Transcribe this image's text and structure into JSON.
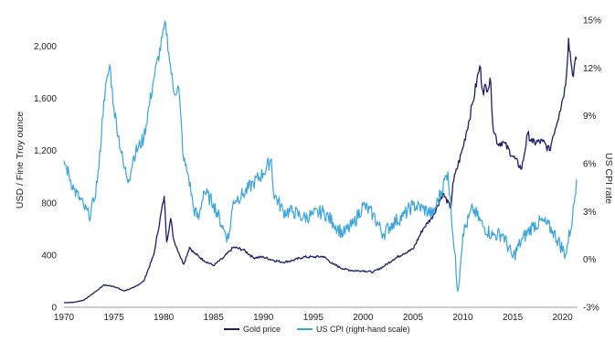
{
  "chart_data": {
    "type": "line",
    "xlabel": "",
    "ylabel_left": "USD / Fine Troy ounce",
    "ylabel_right": "US CPI rate",
    "xlim": [
      1970,
      2021.5
    ],
    "ylim_left": [
      0,
      2200
    ],
    "ylim_right": [
      -3,
      15
    ],
    "x_ticks": [
      "1970",
      "1975",
      "1980",
      "1985",
      "1990",
      "1995",
      "2000",
      "2005",
      "2010",
      "2015",
      "2020"
    ],
    "y_left_ticks": [
      "0",
      "400",
      "800",
      "1,200",
      "1,600",
      "2,000"
    ],
    "y_right_ticks": [
      "-3%",
      "0%",
      "3%",
      "6%",
      "9%",
      "12%",
      "15%"
    ],
    "grid": false,
    "legend_position": "bottom-center",
    "series": [
      {
        "name": "Gold price",
        "axis": "left",
        "color": "#1b1f6b",
        "points": [
          [
            1970,
            35
          ],
          [
            1971,
            38
          ],
          [
            1972,
            55
          ],
          [
            1973,
            110
          ],
          [
            1974,
            170
          ],
          [
            1975,
            160
          ],
          [
            1976,
            125
          ],
          [
            1977,
            150
          ],
          [
            1978,
            200
          ],
          [
            1979,
            400
          ],
          [
            1980.05,
            850
          ],
          [
            1980.3,
            500
          ],
          [
            1980.7,
            680
          ],
          [
            1981,
            520
          ],
          [
            1981.5,
            420
          ],
          [
            1982,
            330
          ],
          [
            1982.6,
            460
          ],
          [
            1983,
            420
          ],
          [
            1984,
            360
          ],
          [
            1985,
            320
          ],
          [
            1986,
            380
          ],
          [
            1987,
            460
          ],
          [
            1988,
            440
          ],
          [
            1989,
            380
          ],
          [
            1990,
            385
          ],
          [
            1991,
            360
          ],
          [
            1992,
            345
          ],
          [
            1993,
            360
          ],
          [
            1994,
            385
          ],
          [
            1995,
            385
          ],
          [
            1996,
            390
          ],
          [
            1997,
            330
          ],
          [
            1998,
            295
          ],
          [
            1999,
            280
          ],
          [
            2000,
            280
          ],
          [
            2001,
            270
          ],
          [
            2002,
            310
          ],
          [
            2003,
            365
          ],
          [
            2004,
            410
          ],
          [
            2005,
            445
          ],
          [
            2006,
            600
          ],
          [
            2007,
            700
          ],
          [
            2008,
            870
          ],
          [
            2008.8,
            760
          ],
          [
            2009,
            950
          ],
          [
            2010,
            1220
          ],
          [
            2011,
            1570
          ],
          [
            2011.7,
            1850
          ],
          [
            2012,
            1660
          ],
          [
            2012.8,
            1720
          ],
          [
            2013,
            1400
          ],
          [
            2013.5,
            1250
          ],
          [
            2014,
            1270
          ],
          [
            2015,
            1160
          ],
          [
            2015.9,
            1060
          ],
          [
            2016.5,
            1330
          ],
          [
            2017,
            1260
          ],
          [
            2018,
            1270
          ],
          [
            2018.7,
            1200
          ],
          [
            2019,
            1300
          ],
          [
            2019.7,
            1500
          ],
          [
            2020.3,
            1700
          ],
          [
            2020.6,
            2060
          ],
          [
            2021,
            1780
          ],
          [
            2021.4,
            1900
          ]
        ]
      },
      {
        "name": "US CPI (right-hand scale)",
        "axis": "right",
        "color": "#3aa4dc",
        "points": [
          [
            1970,
            6.2
          ],
          [
            1971,
            4.4
          ],
          [
            1972,
            3.3
          ],
          [
            1972.5,
            2.7
          ],
          [
            1973,
            3.6
          ],
          [
            1973.5,
            5.7
          ],
          [
            1974,
            10
          ],
          [
            1974.6,
            12.2
          ],
          [
            1975,
            9.5
          ],
          [
            1976,
            5.8
          ],
          [
            1976.5,
            5.0
          ],
          [
            1977,
            6.5
          ],
          [
            1978,
            7.6
          ],
          [
            1979,
            11.3
          ],
          [
            1980.2,
            14.8
          ],
          [
            1980.5,
            13.0
          ],
          [
            1981,
            10.5
          ],
          [
            1981.5,
            10.8
          ],
          [
            1982,
            6.2
          ],
          [
            1982.5,
            5.2
          ],
          [
            1983,
            3.2
          ],
          [
            1983.5,
            2.5
          ],
          [
            1984,
            4.3
          ],
          [
            1985,
            3.5
          ],
          [
            1986,
            1.9
          ],
          [
            1986.5,
            1.3
          ],
          [
            1987,
            3.7
          ],
          [
            1988,
            4.1
          ],
          [
            1989,
            4.8
          ],
          [
            1990,
            5.4
          ],
          [
            1990.8,
            6.3
          ],
          [
            1991,
            4.2
          ],
          [
            1992,
            3.0
          ],
          [
            1993,
            3.0
          ],
          [
            1994,
            2.6
          ],
          [
            1995,
            2.8
          ],
          [
            1996,
            3.0
          ],
          [
            1997,
            2.3
          ],
          [
            1998,
            1.6
          ],
          [
            1999,
            2.2
          ],
          [
            2000,
            3.4
          ],
          [
            2001,
            2.8
          ],
          [
            2002,
            1.6
          ],
          [
            2003,
            2.3
          ],
          [
            2004,
            2.7
          ],
          [
            2005,
            3.4
          ],
          [
            2006,
            3.2
          ],
          [
            2007,
            2.8
          ],
          [
            2008.5,
            5.5
          ],
          [
            2009.5,
            -2.0
          ],
          [
            2010,
            1.6
          ],
          [
            2011,
            3.2
          ],
          [
            2012,
            2.1
          ],
          [
            2013,
            1.5
          ],
          [
            2014,
            1.6
          ],
          [
            2015,
            0.1
          ],
          [
            2016,
            1.3
          ],
          [
            2017,
            2.1
          ],
          [
            2018,
            2.4
          ],
          [
            2019,
            1.8
          ],
          [
            2020.3,
            0.3
          ],
          [
            2021,
            2.6
          ],
          [
            2021.4,
            5.0
          ]
        ]
      }
    ]
  }
}
